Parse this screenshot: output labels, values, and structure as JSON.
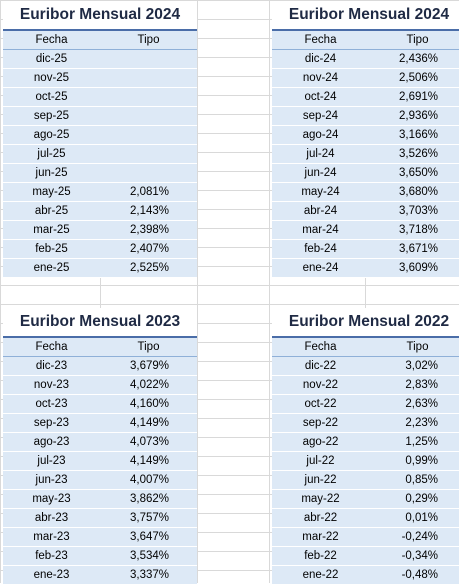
{
  "tables": [
    {
      "title": "Euribor Mensual 2024",
      "headers": {
        "fecha": "Fecha",
        "tipo": "Tipo"
      },
      "rows": [
        {
          "fecha": "dic-25",
          "tipo": ""
        },
        {
          "fecha": "nov-25",
          "tipo": ""
        },
        {
          "fecha": "oct-25",
          "tipo": ""
        },
        {
          "fecha": "sep-25",
          "tipo": ""
        },
        {
          "fecha": "ago-25",
          "tipo": ""
        },
        {
          "fecha": "jul-25",
          "tipo": ""
        },
        {
          "fecha": "jun-25",
          "tipo": ""
        },
        {
          "fecha": "may-25",
          "tipo": "2,081%"
        },
        {
          "fecha": "abr-25",
          "tipo": "2,143%"
        },
        {
          "fecha": "mar-25",
          "tipo": "2,398%"
        },
        {
          "fecha": "feb-25",
          "tipo": "2,407%"
        },
        {
          "fecha": "ene-25",
          "tipo": "2,525%"
        }
      ]
    },
    {
      "title": "Euribor Mensual 2024",
      "headers": {
        "fecha": "Fecha",
        "tipo": "Tipo"
      },
      "rows": [
        {
          "fecha": "dic-24",
          "tipo": "2,436%"
        },
        {
          "fecha": "nov-24",
          "tipo": "2,506%"
        },
        {
          "fecha": "oct-24",
          "tipo": "2,691%"
        },
        {
          "fecha": "sep-24",
          "tipo": "2,936%"
        },
        {
          "fecha": "ago-24",
          "tipo": "3,166%"
        },
        {
          "fecha": "jul-24",
          "tipo": "3,526%"
        },
        {
          "fecha": "jun-24",
          "tipo": "3,650%"
        },
        {
          "fecha": "may-24",
          "tipo": "3,680%"
        },
        {
          "fecha": "abr-24",
          "tipo": "3,703%"
        },
        {
          "fecha": "mar-24",
          "tipo": "3,718%"
        },
        {
          "fecha": "feb-24",
          "tipo": "3,671%"
        },
        {
          "fecha": "ene-24",
          "tipo": "3,609%"
        }
      ]
    },
    {
      "title": "Euribor Mensual 2023",
      "headers": {
        "fecha": "Fecha",
        "tipo": "Tipo"
      },
      "rows": [
        {
          "fecha": "dic-23",
          "tipo": "3,679%"
        },
        {
          "fecha": "nov-23",
          "tipo": "4,022%"
        },
        {
          "fecha": "oct-23",
          "tipo": "4,160%"
        },
        {
          "fecha": "sep-23",
          "tipo": "4,149%"
        },
        {
          "fecha": "ago-23",
          "tipo": "4,073%"
        },
        {
          "fecha": "jul-23",
          "tipo": "4,149%"
        },
        {
          "fecha": "jun-23",
          "tipo": "4,007%"
        },
        {
          "fecha": "may-23",
          "tipo": "3,862%"
        },
        {
          "fecha": "abr-23",
          "tipo": "3,757%"
        },
        {
          "fecha": "mar-23",
          "tipo": "3,647%"
        },
        {
          "fecha": "feb-23",
          "tipo": "3,534%"
        },
        {
          "fecha": "ene-23",
          "tipo": "3,337%"
        }
      ]
    },
    {
      "title": "Euribor Mensual 2022",
      "headers": {
        "fecha": "Fecha",
        "tipo": "Tipo"
      },
      "rows": [
        {
          "fecha": "dic-22",
          "tipo": "3,02%"
        },
        {
          "fecha": "nov-22",
          "tipo": "2,83%"
        },
        {
          "fecha": "oct-22",
          "tipo": "2,63%"
        },
        {
          "fecha": "sep-22",
          "tipo": "2,23%"
        },
        {
          "fecha": "ago-22",
          "tipo": "1,25%"
        },
        {
          "fecha": "jul-22",
          "tipo": "0,99%"
        },
        {
          "fecha": "jun-22",
          "tipo": "0,85%"
        },
        {
          "fecha": "may-22",
          "tipo": "0,29%"
        },
        {
          "fecha": "abr-22",
          "tipo": "0,01%"
        },
        {
          "fecha": "mar-22",
          "tipo": "-0,24%"
        },
        {
          "fecha": "feb-22",
          "tipo": "-0,34%"
        },
        {
          "fecha": "ene-22",
          "tipo": "-0,48%"
        }
      ]
    }
  ],
  "colors": {
    "header_fill": "#dde9f6",
    "title_text": "#1f2a44",
    "title_rule": "#4a6da8",
    "gridline": "#d9d9d9"
  }
}
